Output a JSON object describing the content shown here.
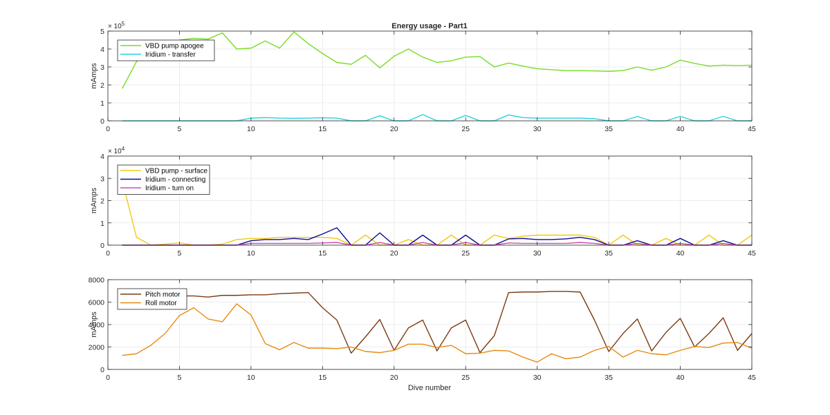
{
  "figure": {
    "title": "Energy usage - Part1",
    "xlabel": "Dive number"
  },
  "chart_data": [
    {
      "type": "line",
      "title": "Energy usage - Part1",
      "xlabel": "",
      "ylabel": "mAmps",
      "xlim": [
        0,
        45
      ],
      "ylim": [
        0,
        500000
      ],
      "y_exponent_label": "×10^5",
      "exp_base": "× 10",
      "exp_power": "5",
      "x_ticks": [
        0,
        5,
        10,
        15,
        20,
        25,
        30,
        35,
        40,
        45
      ],
      "y_ticks": [
        0,
        100000,
        200000,
        300000,
        400000,
        500000
      ],
      "y_tick_labels": [
        "0",
        "1",
        "2",
        "3",
        "4",
        "5"
      ],
      "grid": true,
      "legend": "top-left",
      "x": [
        1,
        2,
        3,
        4,
        5,
        6,
        7,
        8,
        9,
        10,
        11,
        12,
        13,
        14,
        15,
        16,
        17,
        18,
        19,
        20,
        21,
        22,
        23,
        24,
        25,
        26,
        27,
        28,
        29,
        30,
        31,
        32,
        33,
        34,
        35,
        36,
        37,
        38,
        39,
        40,
        41,
        42,
        43,
        44,
        45
      ],
      "series": [
        {
          "name": "VBD pump apogee",
          "color": "#77dd22",
          "values": [
            180000,
            330000,
            400000,
            380000,
            450000,
            460000,
            455000,
            490000,
            400000,
            405000,
            445000,
            405000,
            495000,
            430000,
            375000,
            325000,
            315000,
            365000,
            295000,
            360000,
            400000,
            355000,
            325000,
            335000,
            355000,
            358000,
            300000,
            322000,
            305000,
            290000,
            285000,
            280000,
            280000,
            278000,
            276000,
            280000,
            300000,
            282000,
            300000,
            338000,
            320000,
            305000,
            310000,
            308000,
            310000
          ]
        },
        {
          "name": "Iridium - transfer",
          "color": "#22d3dd",
          "values": [
            0,
            0,
            0,
            0,
            0,
            0,
            0,
            0,
            0,
            15000,
            18000,
            15000,
            14000,
            15000,
            17000,
            15000,
            0,
            0,
            28000,
            0,
            0,
            35000,
            0,
            0,
            30000,
            0,
            0,
            33000,
            18000,
            15000,
            15000,
            15000,
            15000,
            12000,
            0,
            0,
            24000,
            0,
            0,
            25000,
            0,
            0,
            25000,
            0,
            0
          ]
        }
      ]
    },
    {
      "type": "line",
      "title": "",
      "xlabel": "",
      "ylabel": "mAmps",
      "xlim": [
        0,
        45
      ],
      "ylim": [
        0,
        40000
      ],
      "y_exponent_label": "×10^4",
      "exp_base": "× 10",
      "exp_power": "4",
      "x_ticks": [
        0,
        5,
        10,
        15,
        20,
        25,
        30,
        35,
        40,
        45
      ],
      "y_ticks": [
        0,
        10000,
        20000,
        30000,
        40000
      ],
      "y_tick_labels": [
        "0",
        "1",
        "2",
        "3",
        "4"
      ],
      "grid": true,
      "legend": "top-left",
      "x": [
        1,
        2,
        3,
        4,
        5,
        6,
        7,
        8,
        9,
        10,
        11,
        12,
        13,
        14,
        15,
        16,
        17,
        18,
        19,
        20,
        21,
        22,
        23,
        24,
        25,
        26,
        27,
        28,
        29,
        30,
        31,
        32,
        33,
        34,
        35,
        36,
        37,
        38,
        39,
        40,
        41,
        42,
        43,
        44,
        45
      ],
      "series": [
        {
          "name": "VBD pump - surface",
          "color": "#f2c80f",
          "values": [
            29000,
            3500,
            0,
            500,
            1000,
            0,
            0,
            500,
            2500,
            3000,
            3000,
            3500,
            3500,
            3500,
            3500,
            3000,
            0,
            4500,
            0,
            0,
            2500,
            0,
            0,
            4500,
            0,
            0,
            4500,
            3000,
            4000,
            4500,
            4500,
            4500,
            4500,
            3500,
            0,
            4500,
            0,
            0,
            3000,
            0,
            0,
            4500,
            0,
            0,
            4500
          ]
        },
        {
          "name": "Iridium - connecting",
          "color": "#0a0a9a",
          "values": [
            0,
            0,
            0,
            0,
            0,
            0,
            0,
            0,
            0,
            2000,
            2500,
            2500,
            3000,
            2500,
            5000,
            7800,
            0,
            0,
            5500,
            0,
            0,
            4500,
            0,
            0,
            4500,
            0,
            0,
            2800,
            3000,
            2500,
            2500,
            2800,
            3500,
            2500,
            0,
            0,
            2000,
            0,
            0,
            3000,
            0,
            0,
            2000,
            0,
            0
          ]
        },
        {
          "name": "Iridium - turn on",
          "color": "#d04ab3",
          "values": [
            0,
            0,
            0,
            0,
            0,
            0,
            0,
            0,
            0,
            800,
            800,
            800,
            800,
            800,
            1000,
            1200,
            0,
            0,
            1200,
            0,
            0,
            1200,
            0,
            0,
            1200,
            0,
            0,
            1000,
            800,
            800,
            800,
            800,
            1200,
            800,
            0,
            0,
            800,
            0,
            0,
            800,
            0,
            0,
            800,
            0,
            0
          ]
        }
      ]
    },
    {
      "type": "line",
      "title": "",
      "xlabel": "Dive number",
      "ylabel": "mAmps",
      "xlim": [
        0,
        45
      ],
      "ylim": [
        0,
        8000
      ],
      "x_ticks": [
        0,
        5,
        10,
        15,
        20,
        25,
        30,
        35,
        40,
        45
      ],
      "y_ticks": [
        0,
        2000,
        4000,
        6000,
        8000
      ],
      "y_tick_labels": [
        "0",
        "2000",
        "4000",
        "6000",
        "8000"
      ],
      "grid": true,
      "legend": "top-left",
      "x": [
        1,
        2,
        3,
        4,
        5,
        6,
        7,
        8,
        9,
        10,
        11,
        12,
        13,
        14,
        15,
        16,
        17,
        18,
        19,
        20,
        21,
        22,
        23,
        24,
        25,
        26,
        27,
        28,
        29,
        30,
        31,
        32,
        33,
        34,
        35,
        36,
        37,
        38,
        39,
        40,
        41,
        42,
        43,
        44,
        45
      ],
      "series": [
        {
          "name": "Pitch motor",
          "color": "#7a3a0f",
          "values": [
            6500,
            6500,
            6500,
            6500,
            6550,
            6550,
            6450,
            6600,
            6600,
            6650,
            6650,
            6750,
            6800,
            6850,
            5500,
            4400,
            1450,
            2900,
            4450,
            1700,
            3700,
            4400,
            1650,
            3700,
            4400,
            1500,
            3000,
            6850,
            6900,
            6900,
            6950,
            6950,
            6900,
            4400,
            1600,
            3200,
            4500,
            1650,
            3300,
            4550,
            2000,
            3200,
            4600,
            1700,
            3200
          ]
        },
        {
          "name": "Roll motor",
          "color": "#e68a0f",
          "values": [
            1250,
            1400,
            2150,
            3200,
            4800,
            5500,
            4500,
            4250,
            5850,
            4850,
            2300,
            1750,
            2400,
            1900,
            1900,
            1850,
            2000,
            1600,
            1500,
            1700,
            2250,
            2250,
            1950,
            2150,
            1400,
            1450,
            1700,
            1650,
            1100,
            650,
            1400,
            950,
            1100,
            1700,
            2050,
            1100,
            1700,
            1400,
            1300,
            1700,
            2050,
            1950,
            2350,
            2400,
            1900
          ]
        }
      ]
    }
  ]
}
